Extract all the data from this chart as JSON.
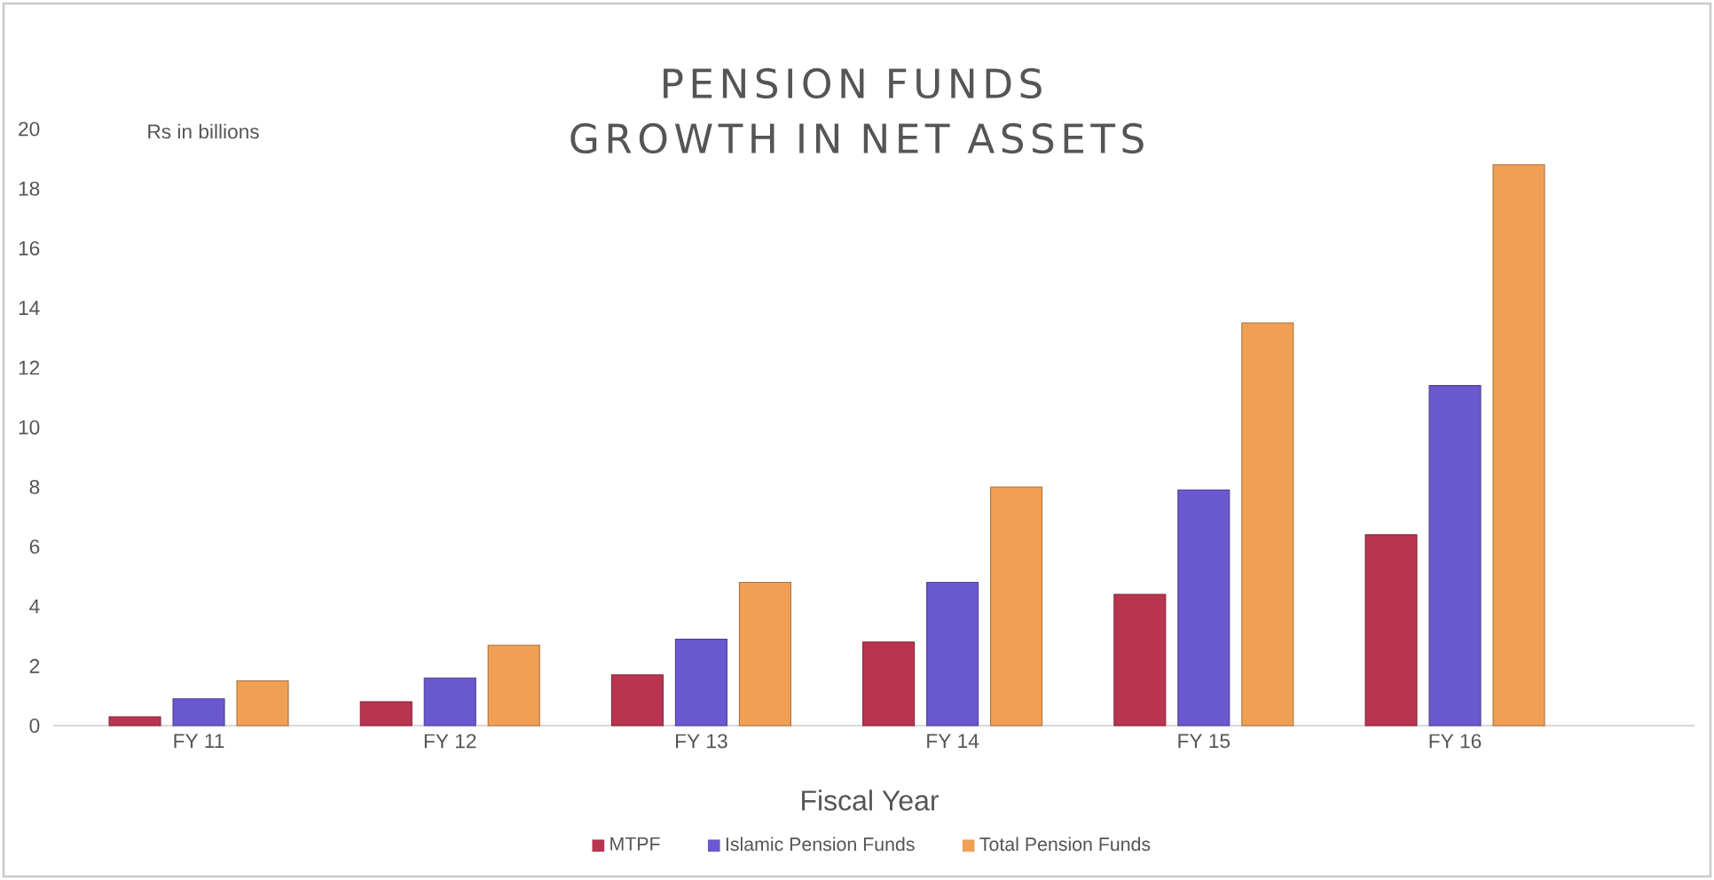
{
  "chart_data": {
    "type": "bar",
    "title": "PENSION FUNDS",
    "subtitle": "GROWTH IN NET ASSETS",
    "xlabel": "Fiscal Year",
    "ylabel": "Rs in billions",
    "categories": [
      "FY 11",
      "FY 12",
      "FY 13",
      "FY 14",
      "FY 15",
      "FY 16"
    ],
    "series": [
      {
        "name": "MTPF",
        "color": "#b8344f",
        "values": [
          0.3,
          0.8,
          1.7,
          2.8,
          4.4,
          6.4
        ]
      },
      {
        "name": "Islamic Pension Funds",
        "color": "#6a58d0",
        "values": [
          0.9,
          1.6,
          2.9,
          4.8,
          7.9,
          11.4
        ]
      },
      {
        "name": "Total Pension Funds",
        "color": "#f0a055",
        "values": [
          1.5,
          2.7,
          4.8,
          8.0,
          13.5,
          18.8
        ]
      }
    ],
    "ylim": [
      0,
      20
    ],
    "yticks": [
      0,
      2,
      4,
      6,
      8,
      10,
      12,
      14,
      16,
      18,
      20
    ],
    "grid": false,
    "legend": "bottom"
  }
}
